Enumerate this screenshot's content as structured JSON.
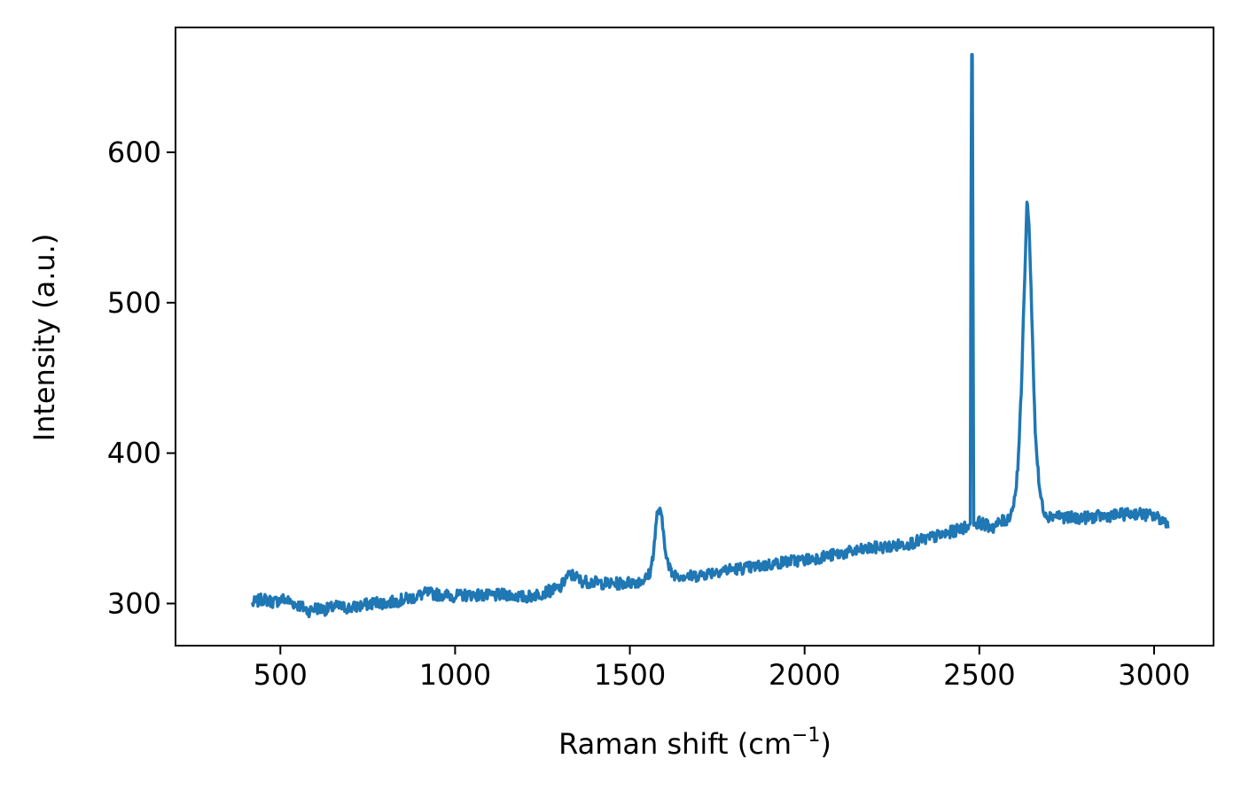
{
  "chart_data": {
    "type": "line",
    "title": "",
    "xlabel": {
      "prefix": "Raman shift (cm",
      "superscript": "−1",
      "suffix": ")"
    },
    "ylabel": "Intensity (a.u.)",
    "xlim": [
      200,
      3170
    ],
    "ylim": [
      272,
      683
    ],
    "xticks": [
      500,
      1000,
      1500,
      2000,
      2500,
      3000
    ],
    "xtick_labels": [
      "500",
      "1000",
      "1500",
      "2000",
      "2500",
      "3000"
    ],
    "yticks": [
      300,
      400,
      500,
      600
    ],
    "ytick_labels": [
      "300",
      "400",
      "500",
      "600"
    ],
    "grid": false,
    "legend": "none",
    "series": [
      {
        "color": "#1f77b4",
        "x": [
          420,
          450,
          480,
          510,
          540,
          560,
          580,
          600,
          630,
          660,
          700,
          740,
          780,
          800,
          840,
          880,
          920,
          950,
          1000,
          1050,
          1100,
          1150,
          1200,
          1250,
          1280,
          1300,
          1320,
          1340,
          1360,
          1400,
          1450,
          1500,
          1530,
          1550,
          1560,
          1570,
          1580,
          1590,
          1600,
          1610,
          1620,
          1640,
          1680,
          1720,
          1760,
          1800,
          1850,
          1900,
          1950,
          2000,
          2050,
          2100,
          2150,
          2200,
          2250,
          2300,
          2350,
          2400,
          2440,
          2460,
          2470,
          2474,
          2477,
          2480,
          2484,
          2490,
          2500,
          2520,
          2540,
          2560,
          2580,
          2590,
          2600,
          2610,
          2620,
          2630,
          2636,
          2640,
          2645,
          2650,
          2660,
          2670,
          2680,
          2690,
          2700,
          2720,
          2750,
          2800,
          2850,
          2900,
          2950,
          3000,
          3040
        ],
        "y": [
          300,
          303,
          301,
          303,
          300,
          298,
          295,
          297,
          296,
          298,
          297,
          299,
          301,
          300,
          302,
          304,
          307,
          306,
          305,
          306,
          305,
          306,
          304,
          307,
          309,
          310,
          318,
          319,
          315,
          314,
          313,
          314,
          315,
          317,
          322,
          340,
          363,
          358,
          340,
          325,
          320,
          319,
          318,
          320,
          322,
          323,
          324,
          326,
          328,
          329,
          331,
          333,
          335,
          337,
          338,
          340,
          343,
          346,
          349,
          351,
          352,
          353,
          665,
          665,
          352,
          353,
          354,
          352,
          351,
          354,
          356,
          360,
          368,
          390,
          440,
          520,
          566,
          560,
          535,
          490,
          415,
          380,
          365,
          360,
          358,
          359,
          357,
          357,
          358,
          359,
          360,
          358,
          354
        ]
      }
    ]
  }
}
